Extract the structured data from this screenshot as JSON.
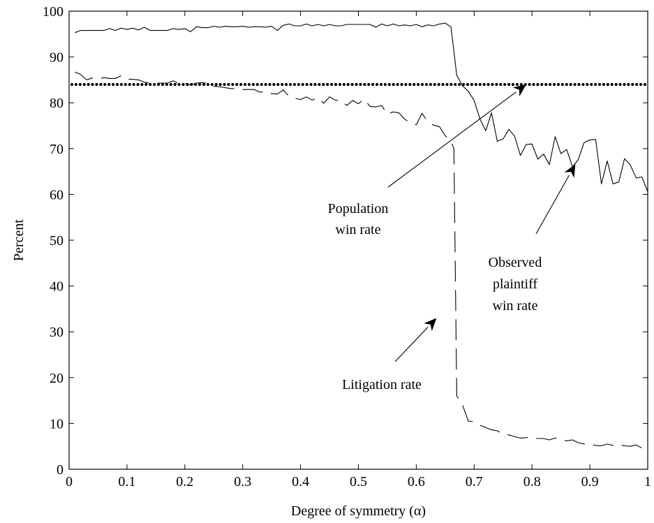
{
  "chart_data": {
    "type": "line",
    "xlabel": "Degree of symmetry (α)",
    "ylabel": "Percent",
    "xlim": [
      0,
      1
    ],
    "ylim": [
      0,
      100
    ],
    "xticks": [
      0,
      0.1,
      0.2,
      0.3,
      0.4,
      0.5,
      0.6,
      0.7,
      0.8,
      0.9,
      1
    ],
    "yticks": [
      0,
      10,
      20,
      30,
      40,
      50,
      60,
      70,
      80,
      90,
      100
    ],
    "xtick_labels": [
      "0",
      "0.1",
      "0.2",
      "0.3",
      "0.4",
      "0.5",
      "0.6",
      "0.7",
      "0.8",
      "0.9",
      "1"
    ],
    "ytick_labels": [
      "0",
      "10",
      "20",
      "30",
      "40",
      "50",
      "60",
      "70",
      "80",
      "90",
      "100"
    ],
    "grid": false,
    "legend": "none",
    "series": [
      {
        "style": "solid",
        "x": [
          0.01,
          0.02,
          0.03,
          0.04,
          0.05,
          0.06,
          0.07,
          0.08,
          0.09,
          0.1,
          0.11,
          0.12,
          0.13,
          0.14,
          0.15,
          0.16,
          0.17,
          0.18,
          0.19,
          0.2,
          0.21,
          0.22,
          0.23,
          0.24,
          0.25,
          0.26,
          0.27,
          0.28,
          0.29,
          0.3,
          0.31,
          0.32,
          0.33,
          0.34,
          0.35,
          0.36,
          0.37,
          0.38,
          0.39,
          0.4,
          0.41,
          0.42,
          0.43,
          0.44,
          0.45,
          0.46,
          0.47,
          0.48,
          0.49,
          0.5,
          0.51,
          0.52,
          0.53,
          0.54,
          0.55,
          0.56,
          0.57,
          0.58,
          0.59,
          0.6,
          0.61,
          0.62,
          0.63,
          0.64,
          0.65,
          0.66,
          0.67,
          0.68,
          0.69,
          0.7,
          0.71,
          0.72,
          0.73,
          0.74,
          0.75,
          0.76,
          0.77,
          0.78,
          0.79,
          0.8,
          0.81,
          0.82,
          0.83,
          0.84,
          0.85,
          0.86,
          0.87,
          0.88,
          0.89,
          0.9,
          0.91,
          0.92,
          0.93,
          0.94,
          0.95,
          0.96,
          0.97,
          0.98,
          0.99,
          1.0
        ],
        "y": [
          95.3,
          95.8,
          95.8,
          95.8,
          95.8,
          95.8,
          96.2,
          95.8,
          96.3,
          96.0,
          96.3,
          95.9,
          96.5,
          95.8,
          95.8,
          95.8,
          95.8,
          96.2,
          96.0,
          96.2,
          95.5,
          96.6,
          96.4,
          96.4,
          96.7,
          96.5,
          96.7,
          96.6,
          96.6,
          96.7,
          96.5,
          96.6,
          96.6,
          96.5,
          96.7,
          95.8,
          96.9,
          97.2,
          96.8,
          96.8,
          97.2,
          96.8,
          97.1,
          96.8,
          97.1,
          96.8,
          96.8,
          97.1,
          97.1,
          97.1,
          97.1,
          97.1,
          96.5,
          97.2,
          96.8,
          97.2,
          96.8,
          97.0,
          96.8,
          97.1,
          96.6,
          97.0,
          96.8,
          97.2,
          97.4,
          96.6,
          86.0,
          83.7,
          82.5,
          80.5,
          76.5,
          73.9,
          77.8,
          71.6,
          72.1,
          74.2,
          72.7,
          68.5,
          70.9,
          71.0,
          67.7,
          68.8,
          66.5,
          72.6,
          68.9,
          69.8,
          66.0,
          67.6,
          71.3,
          71.9,
          72.0,
          62.3,
          67.3,
          62.3,
          62.7,
          67.8,
          66.4,
          63.6,
          63.8,
          60.6
        ]
      },
      {
        "style": "dashed",
        "x": [
          0.01,
          0.02,
          0.03,
          0.04,
          0.05,
          0.06,
          0.07,
          0.08,
          0.09,
          0.1,
          0.11,
          0.12,
          0.13,
          0.14,
          0.15,
          0.16,
          0.17,
          0.18,
          0.19,
          0.2,
          0.21,
          0.22,
          0.23,
          0.24,
          0.25,
          0.26,
          0.27,
          0.28,
          0.29,
          0.3,
          0.31,
          0.32,
          0.33,
          0.34,
          0.35,
          0.36,
          0.37,
          0.38,
          0.39,
          0.4,
          0.41,
          0.42,
          0.43,
          0.44,
          0.45,
          0.46,
          0.47,
          0.48,
          0.49,
          0.5,
          0.51,
          0.52,
          0.53,
          0.54,
          0.55,
          0.56,
          0.57,
          0.58,
          0.59,
          0.6,
          0.61,
          0.62,
          0.63,
          0.64,
          0.65,
          0.66,
          0.665,
          0.67,
          0.68,
          0.69,
          0.7,
          0.71,
          0.72,
          0.73,
          0.74,
          0.75,
          0.76,
          0.77,
          0.78,
          0.79,
          0.8,
          0.81,
          0.82,
          0.83,
          0.84,
          0.85,
          0.86,
          0.87,
          0.88,
          0.89,
          0.9,
          0.91,
          0.92,
          0.93,
          0.94,
          0.95,
          0.96,
          0.97,
          0.98,
          0.99,
          1.0
        ],
        "y": [
          86.7,
          86.2,
          85.0,
          85.4,
          85.1,
          85.5,
          85.3,
          85.3,
          85.9,
          85.2,
          85.1,
          85.0,
          84.5,
          84.3,
          84.3,
          84.3,
          84.3,
          84.8,
          84.1,
          84.3,
          83.9,
          84.3,
          84.4,
          84.2,
          83.6,
          83.5,
          83.3,
          83.1,
          83.1,
          82.9,
          82.9,
          82.9,
          82.3,
          82.5,
          82.0,
          81.9,
          82.8,
          81.4,
          81.0,
          80.7,
          81.3,
          80.6,
          81.1,
          79.9,
          81.3,
          80.6,
          80.5,
          79.4,
          80.5,
          79.8,
          80.8,
          79.2,
          79.1,
          79.4,
          77.5,
          78.0,
          77.8,
          76.4,
          75.6,
          75.2,
          77.7,
          75.8,
          75.1,
          74.8,
          72.8,
          71.6,
          70.0,
          16.0,
          14.0,
          10.5,
          10.4,
          9.6,
          9.1,
          8.6,
          8.4,
          7.6,
          7.5,
          7.1,
          6.8,
          6.9,
          6.9,
          6.7,
          6.7,
          6.4,
          6.8,
          6.5,
          6.2,
          6.4,
          5.8,
          5.5,
          5.5,
          5.2,
          5.1,
          5.5,
          5.2,
          5.4,
          5.1,
          5.0,
          5.3,
          4.6,
          4.4
        ]
      },
      {
        "style": "dotted",
        "x": [
          0,
          1
        ],
        "y": [
          84,
          84
        ]
      }
    ],
    "annotations": [
      {
        "lines": [
          "Population",
          "win rate"
        ],
        "arrow_to": [
          0.79,
          84.0
        ]
      },
      {
        "lines": [
          "Observed",
          "plaintiff",
          "win rate"
        ],
        "arrow_to": [
          0.875,
          66.6
        ]
      },
      {
        "lines": [
          "Litigation rate"
        ],
        "arrow_to": [
          0.635,
          33.0
        ]
      }
    ]
  }
}
